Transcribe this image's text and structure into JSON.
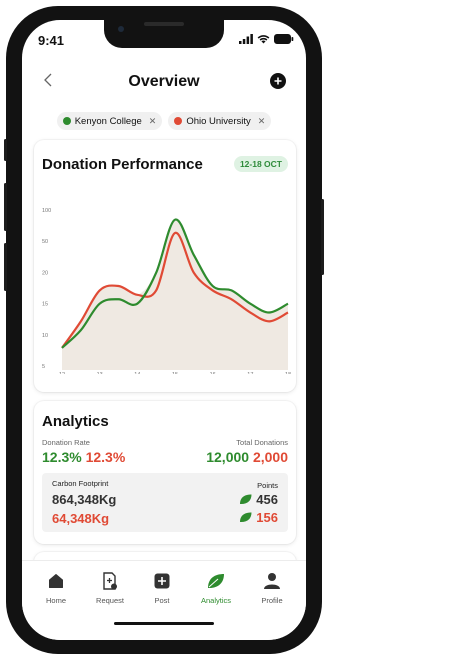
{
  "status_bar": {
    "time": "9:41"
  },
  "header": {
    "title": "Overview"
  },
  "filters": [
    {
      "label": "Kenyon College",
      "color": "#2e8b2e"
    },
    {
      "label": "Ohio University",
      "color": "#e04a35"
    }
  ],
  "performance": {
    "title": "Donation Performance",
    "date_range": "12-18 OCT"
  },
  "chart_data": {
    "type": "line",
    "x": [
      12,
      13,
      14,
      15,
      16,
      17,
      18
    ],
    "xlabels": [
      "12",
      "13",
      "14",
      "15",
      "16",
      "17",
      "18"
    ],
    "ylabels": [
      "100",
      "50",
      "20",
      "15",
      "10",
      "5"
    ],
    "series": [
      {
        "name": "Kenyon College",
        "color": "#2e8b2e",
        "points": [
          [
            12,
            12.5
          ],
          [
            12.5,
            14.5
          ],
          [
            13,
            17.5
          ],
          [
            13.5,
            18
          ],
          [
            14,
            17.5
          ],
          [
            14.5,
            21
          ],
          [
            15,
            27
          ],
          [
            15.5,
            23
          ],
          [
            16,
            19.5
          ],
          [
            16.5,
            19
          ],
          [
            17,
            17.5
          ],
          [
            17.5,
            16.5
          ],
          [
            18,
            17.5
          ]
        ]
      },
      {
        "name": "Ohio University",
        "color": "#e04a35",
        "points": [
          [
            12,
            12.5
          ],
          [
            12.5,
            15.5
          ],
          [
            13,
            19
          ],
          [
            13.5,
            19.5
          ],
          [
            14,
            18.5
          ],
          [
            14.5,
            19
          ],
          [
            15,
            25.5
          ],
          [
            15.5,
            21
          ],
          [
            16,
            19
          ],
          [
            16.5,
            18
          ],
          [
            17,
            16.5
          ],
          [
            17.5,
            15.5
          ],
          [
            18,
            16.5
          ]
        ]
      }
    ]
  },
  "analytics": {
    "title": "Analytics",
    "donation_rate_label": "Donation Rate",
    "donation_rate_a": "12.3%",
    "donation_rate_b": "12.3%",
    "total_donations_label": "Total Donations",
    "total_a": "12,000",
    "total_b": "2,000",
    "carbon_label": "Carbon Footprint",
    "carbon_a": "864,348Kg",
    "carbon_b": "64,348Kg",
    "points_label": "Points",
    "points_a": "456",
    "points_b": "156"
  },
  "tabs": [
    {
      "label": "Home",
      "icon": "home-icon"
    },
    {
      "label": "Request",
      "icon": "request-icon"
    },
    {
      "label": "Post",
      "icon": "post-icon"
    },
    {
      "label": "Analytics",
      "icon": "leaf-icon",
      "active": true
    },
    {
      "label": "Profile",
      "icon": "profile-icon"
    }
  ],
  "colors": {
    "green": "#2e8b2e",
    "red": "#e04a35",
    "area_fill": "#efe9e2"
  }
}
